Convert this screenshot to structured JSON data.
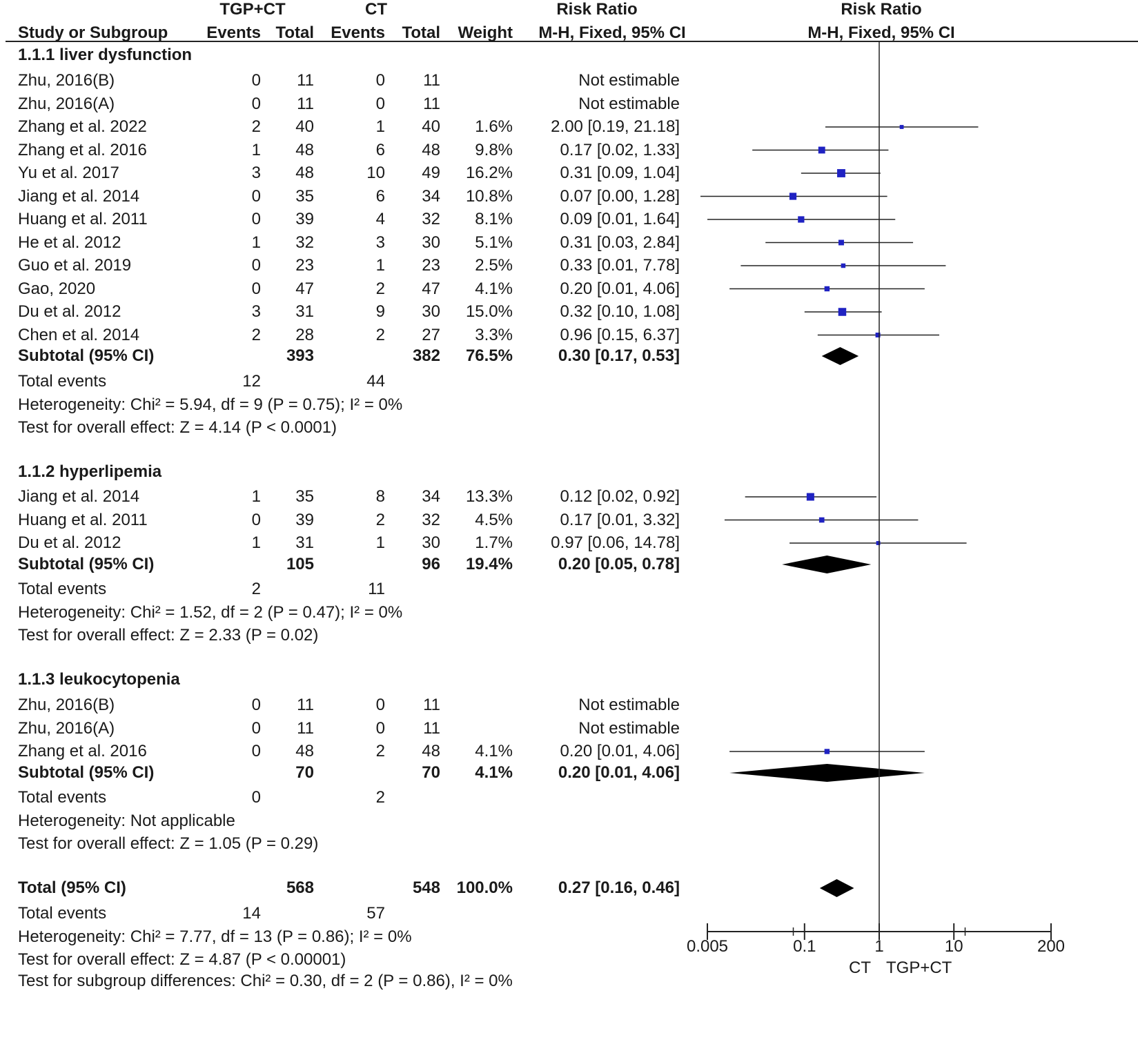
{
  "header": {
    "group1": "TGP+CT",
    "group2": "CT",
    "rr_title": "Risk Ratio",
    "rr_method": "M-H, Fixed, 95% CI",
    "plot_title": "Risk Ratio",
    "plot_method": "M-H, Fixed, 95% CI",
    "col_study": "Study or Subgroup",
    "col_events1": "Events",
    "col_total1": "Total",
    "col_events2": "Events",
    "col_total2": "Total",
    "col_weight": "Weight"
  },
  "chart_data": {
    "type": "forest",
    "scale": "log",
    "xlim": [
      0.005,
      200
    ],
    "ticks": [
      {
        "v": 0.005,
        "label": "0.005"
      },
      {
        "v": 0.1,
        "label": "0.1"
      },
      {
        "v": 1,
        "label": "1"
      },
      {
        "v": 10,
        "label": "10"
      },
      {
        "v": 200,
        "label": "200"
      }
    ],
    "favours_left": "CT",
    "favours_right": "TGP+CT",
    "subgroups": [
      {
        "title": "1.1.1 liver dysfunction",
        "studies": [
          {
            "name": "Zhu, 2016(B)",
            "e1": "0",
            "n1": "11",
            "e2": "0",
            "n2": "11",
            "weight": "",
            "ci_text": "Not estimable",
            "rr": null,
            "lo": null,
            "hi": null
          },
          {
            "name": "Zhu, 2016(A)",
            "e1": "0",
            "n1": "11",
            "e2": "0",
            "n2": "11",
            "weight": "",
            "ci_text": "Not estimable",
            "rr": null,
            "lo": null,
            "hi": null
          },
          {
            "name": "Zhang et al. 2022",
            "e1": "2",
            "n1": "40",
            "e2": "1",
            "n2": "40",
            "weight": "1.6%",
            "ci_text": "2.00 [0.19, 21.18]",
            "rr": 2.0,
            "lo": 0.19,
            "hi": 21.18
          },
          {
            "name": "Zhang et al. 2016",
            "e1": "1",
            "n1": "48",
            "e2": "6",
            "n2": "48",
            "weight": "9.8%",
            "ci_text": "0.17 [0.02, 1.33]",
            "rr": 0.17,
            "lo": 0.02,
            "hi": 1.33
          },
          {
            "name": "Yu et al. 2017",
            "e1": "3",
            "n1": "48",
            "e2": "10",
            "n2": "49",
            "weight": "16.2%",
            "ci_text": "0.31 [0.09, 1.04]",
            "rr": 0.31,
            "lo": 0.09,
            "hi": 1.04
          },
          {
            "name": "Jiang et al. 2014",
            "e1": "0",
            "n1": "35",
            "e2": "6",
            "n2": "34",
            "weight": "10.8%",
            "ci_text": "0.07 [0.00, 1.28]",
            "rr": 0.07,
            "lo": 0.004,
            "hi": 1.28
          },
          {
            "name": "Huang et al. 2011",
            "e1": "0",
            "n1": "39",
            "e2": "4",
            "n2": "32",
            "weight": "8.1%",
            "ci_text": "0.09 [0.01, 1.64]",
            "rr": 0.09,
            "lo": 0.005,
            "hi": 1.64
          },
          {
            "name": "He et al. 2012",
            "e1": "1",
            "n1": "32",
            "e2": "3",
            "n2": "30",
            "weight": "5.1%",
            "ci_text": "0.31 [0.03, 2.84]",
            "rr": 0.31,
            "lo": 0.03,
            "hi": 2.84
          },
          {
            "name": "Guo et al. 2019",
            "e1": "0",
            "n1": "23",
            "e2": "1",
            "n2": "23",
            "weight": "2.5%",
            "ci_text": "0.33 [0.01, 7.78]",
            "rr": 0.33,
            "lo": 0.014,
            "hi": 7.78
          },
          {
            "name": "Gao, 2020",
            "e1": "0",
            "n1": "47",
            "e2": "2",
            "n2": "47",
            "weight": "4.1%",
            "ci_text": "0.20 [0.01, 4.06]",
            "rr": 0.2,
            "lo": 0.0099,
            "hi": 4.06
          },
          {
            "name": "Du et al. 2012",
            "e1": "3",
            "n1": "31",
            "e2": "9",
            "n2": "30",
            "weight": "15.0%",
            "ci_text": "0.32 [0.10, 1.08]",
            "rr": 0.32,
            "lo": 0.1,
            "hi": 1.08
          },
          {
            "name": "Chen et al. 2014",
            "e1": "2",
            "n1": "28",
            "e2": "2",
            "n2": "27",
            "weight": "3.3%",
            "ci_text": "0.96 [0.15, 6.37]",
            "rr": 0.96,
            "lo": 0.15,
            "hi": 6.37
          }
        ],
        "subtotal": {
          "label": "Subtotal (95% CI)",
          "n1": "393",
          "n2": "382",
          "weight": "76.5%",
          "ci_text": "0.30 [0.17, 0.53]",
          "rr": 0.3,
          "lo": 0.17,
          "hi": 0.53
        },
        "events": {
          "label": "Total events",
          "e1": "12",
          "e2": "44"
        },
        "heterogeneity": "Heterogeneity: Chi² = 5.94, df = 9 (P = 0.75); I² = 0%",
        "overall": "Test for overall effect: Z = 4.14 (P < 0.0001)"
      },
      {
        "title": "1.1.2 hyperlipemia",
        "studies": [
          {
            "name": "Jiang et al. 2014",
            "e1": "1",
            "n1": "35",
            "e2": "8",
            "n2": "34",
            "weight": "13.3%",
            "ci_text": "0.12 [0.02, 0.92]",
            "rr": 0.12,
            "lo": 0.016,
            "hi": 0.92
          },
          {
            "name": "Huang et al. 2011",
            "e1": "0",
            "n1": "39",
            "e2": "2",
            "n2": "32",
            "weight": "4.5%",
            "ci_text": "0.17 [0.01, 3.32]",
            "rr": 0.17,
            "lo": 0.0085,
            "hi": 3.32
          },
          {
            "name": "Du et al. 2012",
            "e1": "1",
            "n1": "31",
            "e2": "1",
            "n2": "30",
            "weight": "1.7%",
            "ci_text": "0.97 [0.06, 14.78]",
            "rr": 0.97,
            "lo": 0.063,
            "hi": 14.78
          }
        ],
        "subtotal": {
          "label": "Subtotal (95% CI)",
          "n1": "105",
          "n2": "96",
          "weight": "19.4%",
          "ci_text": "0.20 [0.05, 0.78]",
          "rr": 0.2,
          "lo": 0.05,
          "hi": 0.78
        },
        "events": {
          "label": "Total events",
          "e1": "2",
          "e2": "11"
        },
        "heterogeneity": "Heterogeneity: Chi² = 1.52, df = 2 (P = 0.47); I² = 0%",
        "overall": "Test for overall effect: Z = 2.33 (P = 0.02)"
      },
      {
        "title": "1.1.3 leukocytopenia",
        "studies": [
          {
            "name": "Zhu, 2016(B)",
            "e1": "0",
            "n1": "11",
            "e2": "0",
            "n2": "11",
            "weight": "",
            "ci_text": "Not estimable",
            "rr": null,
            "lo": null,
            "hi": null
          },
          {
            "name": "Zhu, 2016(A)",
            "e1": "0",
            "n1": "11",
            "e2": "0",
            "n2": "11",
            "weight": "",
            "ci_text": "Not estimable",
            "rr": null,
            "lo": null,
            "hi": null
          },
          {
            "name": "Zhang et al. 2016",
            "e1": "0",
            "n1": "48",
            "e2": "2",
            "n2": "48",
            "weight": "4.1%",
            "ci_text": "0.20 [0.01, 4.06]",
            "rr": 0.2,
            "lo": 0.0099,
            "hi": 4.06
          }
        ],
        "subtotal": {
          "label": "Subtotal (95% CI)",
          "n1": "70",
          "n2": "70",
          "weight": "4.1%",
          "ci_text": "0.20 [0.01, 4.06]",
          "rr": 0.2,
          "lo": 0.0099,
          "hi": 4.06
        },
        "events": {
          "label": "Total events",
          "e1": "0",
          "e2": "2"
        },
        "heterogeneity": "Heterogeneity: Not applicable",
        "overall": "Test for overall effect: Z = 1.05 (P = 0.29)"
      }
    ],
    "total": {
      "label": "Total (95% CI)",
      "n1": "568",
      "n2": "548",
      "weight": "100.0%",
      "ci_text": "0.27 [0.16, 0.46]",
      "rr": 0.27,
      "lo": 0.16,
      "hi": 0.46
    },
    "total_events": {
      "label": "Total events",
      "e1": "14",
      "e2": "57"
    },
    "total_heterogeneity": "Heterogeneity: Chi² = 7.77, df = 13 (P = 0.86); I² = 0%",
    "total_overall": "Test for overall effect: Z = 4.87 (P < 0.00001)",
    "subgroup_differences": "Test for subgroup differences: Chi² = 0.30, df = 2 (P = 0.86), I² = 0%"
  }
}
